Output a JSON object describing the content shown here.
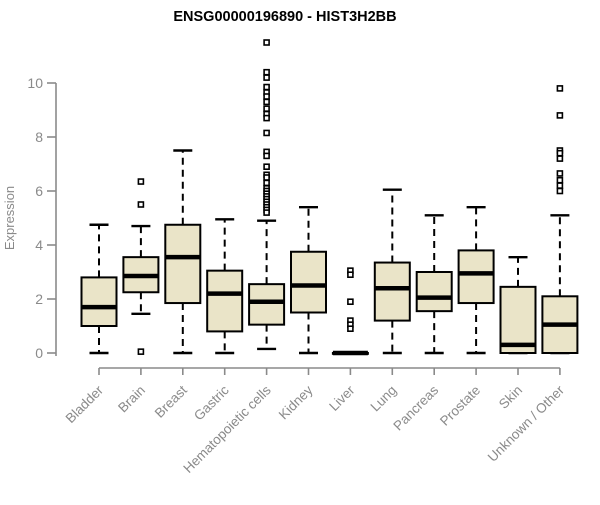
{
  "chart_data": {
    "type": "boxplot",
    "title": "ENSG00000196890 - HIST3H2BB",
    "ylabel": "Expression",
    "xlabel": "",
    "ylim": [
      0,
      11.6
    ],
    "yticks": [
      0,
      2,
      4,
      6,
      8,
      10
    ],
    "grid": false,
    "legend": "none",
    "categories": [
      "Bladder",
      "Brain",
      "Breast",
      "Gastric",
      "Hematopoietic cells",
      "Kidney",
      "Liver",
      "Lung",
      "Pancreas",
      "Prostate",
      "Skin",
      "Unknown / Other"
    ],
    "series": [
      {
        "category": "Bladder",
        "whisker_low": 0,
        "q1": 1.0,
        "median": 1.7,
        "q3": 2.8,
        "whisker_high": 4.75,
        "outliers": []
      },
      {
        "category": "Brain",
        "whisker_low": 1.45,
        "q1": 2.25,
        "median": 2.85,
        "q3": 3.55,
        "whisker_high": 4.7,
        "outliers": [
          6.35,
          5.5,
          0.05
        ]
      },
      {
        "category": "Breast",
        "whisker_low": 0,
        "q1": 1.85,
        "median": 3.55,
        "q3": 4.75,
        "whisker_high": 7.5,
        "outliers": []
      },
      {
        "category": "Gastric",
        "whisker_low": 0,
        "q1": 0.8,
        "median": 2.2,
        "q3": 3.05,
        "whisker_high": 4.95,
        "outliers": []
      },
      {
        "category": "Hematopoietic cells",
        "whisker_low": 0.15,
        "q1": 1.05,
        "median": 1.9,
        "q3": 2.55,
        "whisker_high": 4.9,
        "outliers": [
          11.5,
          10.4,
          10.2,
          9.85,
          9.65,
          9.5,
          9.3,
          9.05,
          8.85,
          8.7,
          8.15,
          7.45,
          7.3,
          6.9,
          6.6,
          6.5,
          6.3,
          6.1,
          6.0,
          5.9,
          5.8,
          5.7,
          5.6,
          5.5,
          5.4,
          5.3,
          5.2
        ]
      },
      {
        "category": "Kidney",
        "whisker_low": 0,
        "q1": 1.5,
        "median": 2.5,
        "q3": 3.75,
        "whisker_high": 5.4,
        "outliers": []
      },
      {
        "category": "Liver",
        "whisker_low": 0,
        "q1": 0,
        "median": 0,
        "q3": 0,
        "whisker_high": 0,
        "outliers": [
          3.05,
          2.9,
          1.9,
          1.2,
          1.05,
          0.9
        ]
      },
      {
        "category": "Lung",
        "whisker_low": 0,
        "q1": 1.2,
        "median": 2.4,
        "q3": 3.35,
        "whisker_high": 6.05,
        "outliers": []
      },
      {
        "category": "Pancreas",
        "whisker_low": 0,
        "q1": 1.55,
        "median": 2.05,
        "q3": 3.0,
        "whisker_high": 5.1,
        "outliers": []
      },
      {
        "category": "Prostate",
        "whisker_low": 0,
        "q1": 1.85,
        "median": 2.95,
        "q3": 3.8,
        "whisker_high": 5.4,
        "outliers": []
      },
      {
        "category": "Skin",
        "whisker_low": 0,
        "q1": 0,
        "median": 0.3,
        "q3": 2.45,
        "whisker_high": 3.55,
        "outliers": []
      },
      {
        "category": "Unknown / Other",
        "whisker_low": 0,
        "q1": 0,
        "median": 1.05,
        "q3": 2.1,
        "whisker_high": 5.1,
        "outliers": [
          9.8,
          8.8,
          7.5,
          7.4,
          7.2,
          6.65,
          6.4,
          6.2,
          6.0
        ]
      }
    ],
    "colors": {
      "box_fill": "#EAE4C8",
      "box_stroke": "#000000",
      "median": "#000000",
      "whisker": "#000000",
      "outlier_stroke": "#000000",
      "axis": "#8a8a8a",
      "tick_label": "#8a8a8a",
      "title": "#000000",
      "background": "#ffffff"
    }
  }
}
